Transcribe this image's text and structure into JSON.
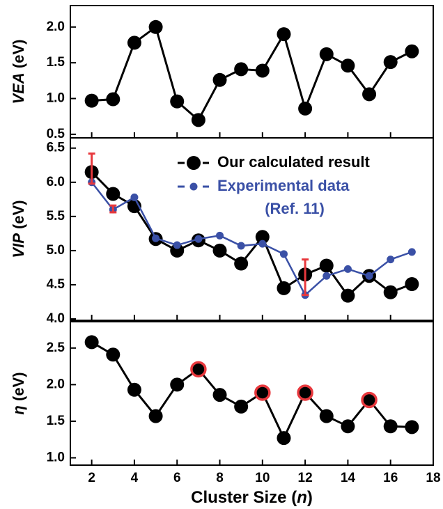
{
  "chart_data": [
    {
      "type": "line",
      "ylabel": [
        "VEA",
        "(eV)"
      ],
      "x": [
        2,
        3,
        4,
        5,
        6,
        7,
        8,
        9,
        10,
        11,
        12,
        13,
        14,
        15,
        16,
        17
      ],
      "series": [
        {
          "name": "VEA",
          "color": "#000000",
          "values": [
            0.97,
            0.99,
            1.78,
            2.0,
            0.96,
            0.7,
            1.26,
            1.41,
            1.39,
            1.9,
            0.86,
            1.62,
            1.46,
            1.06,
            1.51,
            1.66
          ]
        }
      ],
      "ylim": [
        0.45,
        2.3
      ],
      "yticks": [
        0.5,
        {
          "value": 1,
          "label": "1.0"
        },
        1.5,
        {
          "value": 2,
          "label": "2.0"
        }
      ]
    },
    {
      "type": "line",
      "ylabel": [
        "VIP",
        "(eV)"
      ],
      "x": [
        2,
        3,
        4,
        5,
        6,
        7,
        8,
        9,
        10,
        11,
        12,
        13,
        14,
        15,
        16,
        17
      ],
      "series": [
        {
          "name": "Our calculated result",
          "color": "#000000",
          "values": [
            6.15,
            5.83,
            5.65,
            5.17,
            5.0,
            5.15,
            5.0,
            4.81,
            5.2,
            4.45,
            4.65,
            4.78,
            4.34,
            4.63,
            4.39,
            4.51
          ]
        },
        {
          "name": "Experimental data",
          "note": "(Ref. 11)",
          "color": "#3a50a6",
          "values": [
            6.0,
            5.6,
            5.78,
            5.18,
            5.08,
            5.17,
            5.22,
            5.07,
            5.1,
            4.95,
            4.35,
            4.63,
            4.73,
            4.63,
            4.87,
            4.98
          ]
        }
      ],
      "error_bars": {
        "color": "#e8383d",
        "x": [
          2,
          3,
          12
        ],
        "low": [
          5.98,
          5.56,
          4.35
        ],
        "high": [
          6.42,
          5.66,
          4.87
        ]
      },
      "ylim": [
        3.98,
        6.65
      ],
      "yticks": [
        {
          "value": 4,
          "label": "4.0"
        },
        4.5,
        {
          "value": 5,
          "label": "5.0"
        },
        5.5,
        {
          "value": 6,
          "label": "6.0"
        },
        6.5
      ]
    },
    {
      "type": "line",
      "ylabel": [
        "η",
        "(eV)"
      ],
      "x": [
        2,
        3,
        4,
        5,
        6,
        7,
        8,
        9,
        10,
        11,
        12,
        13,
        14,
        15,
        16,
        17
      ],
      "series": [
        {
          "name": "η",
          "color": "#000000",
          "values": [
            2.58,
            2.41,
            1.93,
            1.57,
            2.0,
            2.21,
            1.86,
            1.7,
            1.89,
            1.27,
            1.89,
            1.57,
            1.43,
            1.79,
            1.43,
            1.42
          ]
        }
      ],
      "highlight_x": [
        7,
        10,
        12,
        15
      ],
      "highlight_color": "#e8383d",
      "ylim": [
        0.9,
        2.86
      ],
      "yticks": [
        {
          "value": 1,
          "label": "1.0"
        },
        1.5,
        {
          "value": 2,
          "label": "2.0"
        },
        2.5
      ],
      "xlim": [
        1,
        18
      ],
      "xticks": [
        2,
        4,
        6,
        8,
        10,
        12,
        14,
        16,
        18
      ],
      "xlabel": [
        "Cluster Size (",
        "n",
        ")"
      ]
    }
  ]
}
